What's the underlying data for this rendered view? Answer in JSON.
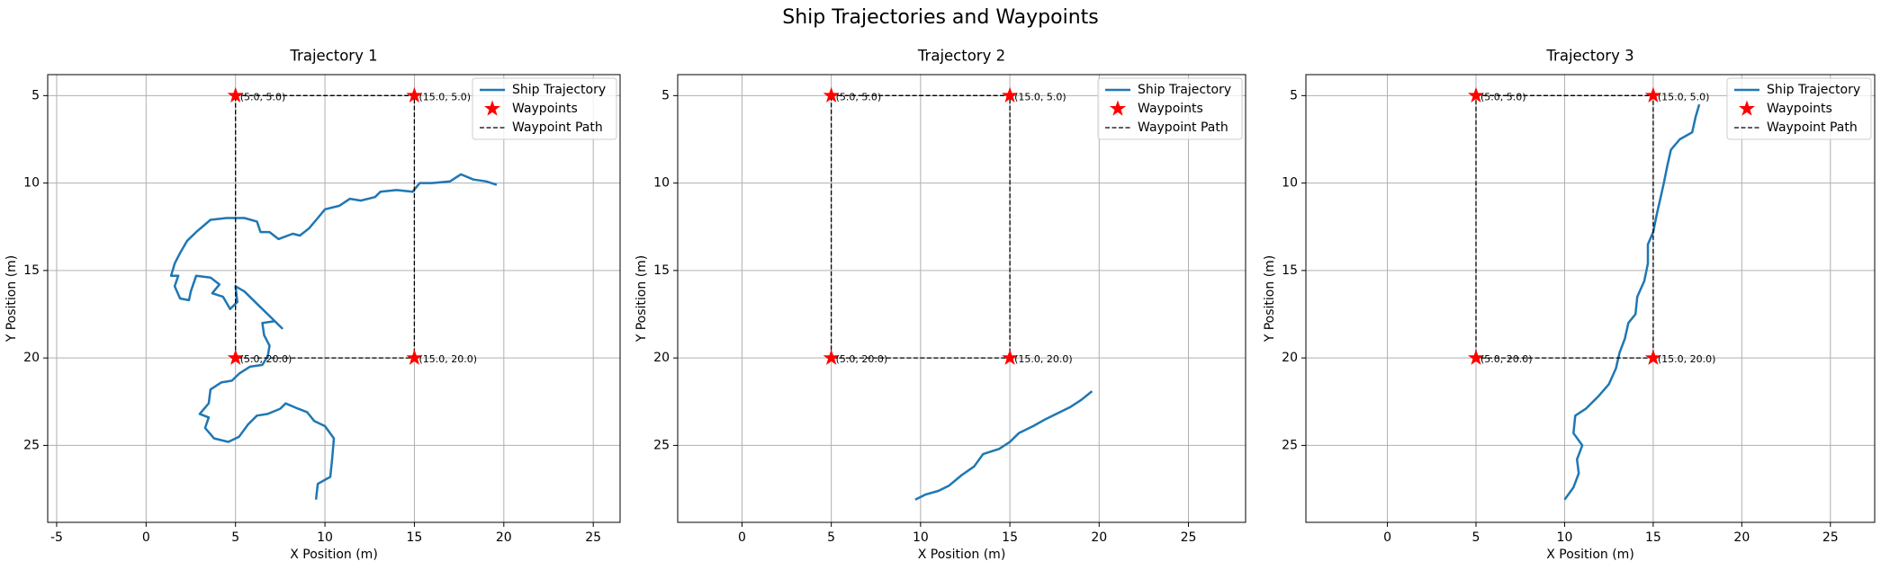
{
  "title": "Ship Trajectories and Waypoints",
  "chart_data": [
    {
      "type": "line",
      "title": "Trajectory 1",
      "xlabel": "X Position (m)",
      "ylabel": "Y Position (m)",
      "xlim": [
        -5.5,
        26.5
      ],
      "ylim": [
        29.4,
        3.8
      ],
      "xticks": [
        -5,
        0,
        5,
        10,
        15,
        20,
        25
      ],
      "yticks": [
        5,
        10,
        15,
        20,
        25
      ],
      "grid": true,
      "legend": "upper right",
      "series": [
        {
          "name": "Ship Trajectory",
          "kind": "line",
          "color": "#1f77b4",
          "dash": "solid",
          "x": [
            9.5,
            9.6,
            10.3,
            10.4,
            10.5,
            10.0,
            9.4,
            9.0,
            8.5,
            7.8,
            7.5,
            6.8,
            6.2,
            5.7,
            5.2,
            4.6,
            3.8,
            3.3,
            3.5,
            3.0,
            3.5,
            3.6,
            4.2,
            4.8,
            5.2,
            5.8,
            6.5,
            6.8,
            6.9,
            6.6,
            6.5,
            7.2,
            7.6,
            7.0,
            6.3,
            5.5,
            5.0,
            5.1,
            4.7,
            4.3,
            3.7,
            4.1,
            3.6,
            2.8,
            2.5,
            2.4,
            1.9,
            1.6,
            1.8,
            1.4,
            1.6,
            1.9,
            2.3,
            2.8,
            3.6,
            4.5,
            5.5,
            6.2,
            6.4,
            6.9,
            7.4,
            8.2,
            8.6,
            9.1,
            9.6,
            10.0,
            10.8,
            11.4,
            12.0,
            12.8,
            13.1,
            14.0,
            14.9,
            15.3,
            16.0,
            17.0,
            17.6,
            18.3,
            19.0,
            19.6
          ],
          "y": [
            28.1,
            27.2,
            26.8,
            25.8,
            24.6,
            23.9,
            23.6,
            23.1,
            22.9,
            22.6,
            22.9,
            23.2,
            23.3,
            23.8,
            24.5,
            24.8,
            24.6,
            24.0,
            23.4,
            23.2,
            22.6,
            21.8,
            21.4,
            21.3,
            20.9,
            20.5,
            20.4,
            19.9,
            19.3,
            18.7,
            18.0,
            17.9,
            18.3,
            17.7,
            17.0,
            16.2,
            15.9,
            16.8,
            17.2,
            16.5,
            16.3,
            15.8,
            15.4,
            15.3,
            16.2,
            16.7,
            16.6,
            15.9,
            15.3,
            15.3,
            14.6,
            14.0,
            13.3,
            12.8,
            12.1,
            12.0,
            12.0,
            12.2,
            12.8,
            12.8,
            13.2,
            12.9,
            13.0,
            12.6,
            12.0,
            11.5,
            11.3,
            10.9,
            11.0,
            10.8,
            10.5,
            10.4,
            10.5,
            10.0,
            10.0,
            9.9,
            9.5,
            9.8,
            9.9,
            10.1
          ]
        },
        {
          "name": "Waypoints",
          "kind": "scatter",
          "color": "#ff0000",
          "marker": "star",
          "x": [
            5,
            15,
            15,
            5
          ],
          "y": [
            5,
            5,
            20,
            20
          ]
        },
        {
          "name": "Waypoint Path",
          "kind": "line",
          "color": "#000000",
          "dash": "dashed",
          "x": [
            5,
            15,
            15,
            5,
            5
          ],
          "y": [
            5,
            5,
            20,
            20,
            5
          ]
        }
      ],
      "annotations": [
        "(5.0, 5.0)",
        "(15.0, 5.0)",
        "(15.0, 20.0)",
        "(5.0, 20.0)"
      ]
    },
    {
      "type": "line",
      "title": "Trajectory 2",
      "xlabel": "X Position (m)",
      "ylabel": "Y Position (m)",
      "xlim": [
        -3.6,
        28.2
      ],
      "ylim": [
        29.4,
        3.8
      ],
      "xticks": [
        0,
        5,
        10,
        15,
        20,
        25
      ],
      "yticks": [
        5,
        10,
        15,
        20,
        25
      ],
      "grid": true,
      "legend": "upper right",
      "series": [
        {
          "name": "Ship Trajectory",
          "kind": "line",
          "color": "#1f77b4",
          "dash": "solid",
          "x": [
            9.7,
            10.3,
            11.0,
            11.6,
            12.3,
            13.0,
            13.5,
            14.4,
            15.0,
            15.5,
            16.3,
            17.0,
            17.6,
            18.4,
            19.0,
            19.6
          ],
          "y": [
            28.1,
            27.8,
            27.6,
            27.3,
            26.7,
            26.2,
            25.5,
            25.2,
            24.8,
            24.3,
            23.9,
            23.5,
            23.2,
            22.8,
            22.4,
            21.9
          ]
        },
        {
          "name": "Waypoints",
          "kind": "scatter",
          "color": "#ff0000",
          "marker": "star",
          "x": [
            5,
            15,
            15,
            5
          ],
          "y": [
            5,
            5,
            20,
            20
          ]
        },
        {
          "name": "Waypoint Path",
          "kind": "line",
          "color": "#000000",
          "dash": "dashed",
          "x": [
            5,
            15,
            15,
            5,
            5
          ],
          "y": [
            5,
            5,
            20,
            20,
            5
          ]
        }
      ],
      "annotations": [
        "(5.0, 5.0)",
        "(15.0, 5.0)",
        "(15.0, 20.0)",
        "(5.0, 20.0)"
      ]
    },
    {
      "type": "line",
      "title": "Trajectory 3",
      "xlabel": "X Position (m)",
      "ylabel": "Y Position (m)",
      "xlim": [
        -4.6,
        27.5
      ],
      "ylim": [
        29.4,
        3.8
      ],
      "xticks": [
        0,
        5,
        10,
        15,
        20,
        25
      ],
      "yticks": [
        5,
        10,
        15,
        20,
        25
      ],
      "grid": true,
      "legend": "upper right",
      "series": [
        {
          "name": "Ship Trajectory",
          "kind": "line",
          "color": "#1f77b4",
          "dash": "solid",
          "x": [
            10.0,
            10.5,
            10.8,
            10.7,
            11.0,
            10.5,
            10.6,
            11.2,
            11.9,
            12.5,
            12.9,
            13.1,
            13.4,
            13.6,
            14.0,
            14.1,
            14.5,
            14.7,
            14.7,
            15.0,
            15.2,
            15.4,
            15.6,
            15.8,
            16.0,
            16.5,
            17.2,
            17.4,
            17.6
          ],
          "y": [
            28.1,
            27.4,
            26.6,
            25.8,
            25.0,
            24.3,
            23.3,
            22.9,
            22.2,
            21.5,
            20.6,
            19.7,
            18.9,
            18.0,
            17.5,
            16.5,
            15.6,
            14.6,
            13.5,
            12.8,
            11.8,
            10.9,
            10.0,
            9.0,
            8.1,
            7.5,
            7.1,
            6.2,
            5.5
          ]
        },
        {
          "name": "Waypoints",
          "kind": "scatter",
          "color": "#ff0000",
          "marker": "star",
          "x": [
            5,
            15,
            15,
            5
          ],
          "y": [
            5,
            5,
            20,
            20
          ]
        },
        {
          "name": "Waypoint Path",
          "kind": "line",
          "color": "#000000",
          "dash": "dashed",
          "x": [
            5,
            15,
            15,
            5,
            5
          ],
          "y": [
            5,
            5,
            20,
            20,
            5
          ]
        }
      ],
      "annotations": [
        "(5.0, 5.0)",
        "(15.0, 5.0)",
        "(15.0, 20.0)",
        "(5.0, 20.0)"
      ]
    }
  ]
}
